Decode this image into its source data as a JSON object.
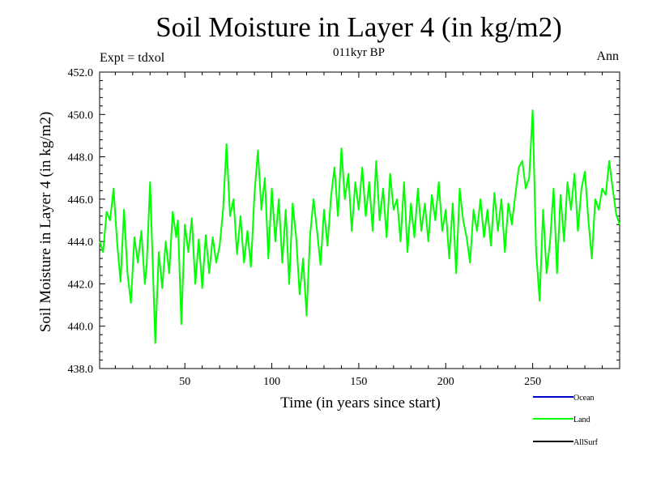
{
  "header": {
    "title": "Soil Moisture in Layer 4 (in kg/m2)",
    "subtitle": "011kyr BP",
    "left_note": "Expt = tdxol",
    "right_note": "Ann"
  },
  "chart_data": {
    "type": "line",
    "title": "Soil Moisture in Layer 4 (in kg/m2)",
    "subtitle": "011kyr BP",
    "xlabel": "Time (in years since start)",
    "ylabel": "Soil Moisture in Layer 4 (in kg/m2)",
    "xlim": [
      1,
      300
    ],
    "ylim": [
      438,
      452
    ],
    "xticks": [
      50,
      100,
      150,
      200,
      250
    ],
    "yticks": [
      "438.0",
      "440.0",
      "442.0",
      "444.0",
      "446.0",
      "448.0",
      "450.0",
      "452.0"
    ],
    "legend_position": "bottom-right",
    "series": [
      {
        "name": "Ocean",
        "color": "#0000cc",
        "values": []
      },
      {
        "name": "Land",
        "color": "#00ff00",
        "x": [
          1,
          3,
          5,
          7,
          9,
          11,
          13,
          15,
          17,
          19,
          21,
          23,
          25,
          27,
          28,
          30,
          33,
          35,
          37,
          39,
          41,
          43,
          45,
          46,
          48,
          50,
          52,
          54,
          56,
          58,
          60,
          62,
          64,
          66,
          68,
          70,
          72,
          74,
          76,
          78,
          80,
          82,
          84,
          86,
          88,
          90,
          92,
          94,
          96,
          98,
          100,
          102,
          104,
          106,
          108,
          110,
          112,
          114,
          116,
          118,
          120,
          122,
          124,
          126,
          128,
          130,
          132,
          134,
          136,
          138,
          140,
          142,
          144,
          146,
          148,
          150,
          152,
          154,
          156,
          158,
          160,
          162,
          164,
          166,
          168,
          170,
          172,
          174,
          176,
          178,
          180,
          182,
          184,
          186,
          188,
          190,
          192,
          194,
          196,
          198,
          200,
          202,
          204,
          206,
          208,
          210,
          212,
          214,
          216,
          218,
          220,
          222,
          224,
          226,
          228,
          230,
          232,
          234,
          236,
          238,
          240,
          242,
          244,
          246,
          248,
          250,
          252,
          254,
          256,
          258,
          260,
          262,
          264,
          266,
          268,
          270,
          272,
          274,
          276,
          278,
          280,
          282,
          284,
          286,
          288,
          290,
          292,
          294,
          296,
          298,
          300
        ],
        "values": [
          444.0,
          443.5,
          445.4,
          445.0,
          446.5,
          444.0,
          442.1,
          445.5,
          442.5,
          441.1,
          444.2,
          443.0,
          444.5,
          442.0,
          442.8,
          446.8,
          439.2,
          443.5,
          441.8,
          444.0,
          442.5,
          445.4,
          444.2,
          445.0,
          440.1,
          444.8,
          443.5,
          445.1,
          442.0,
          444.1,
          441.8,
          444.3,
          442.5,
          444.2,
          443.0,
          443.8,
          445.5,
          448.6,
          445.2,
          446.0,
          443.4,
          445.2,
          443.0,
          444.5,
          442.8,
          446.2,
          448.3,
          445.5,
          447.0,
          443.2,
          446.5,
          444.0,
          446.0,
          443.0,
          445.5,
          442.0,
          445.8,
          444.2,
          441.5,
          443.2,
          440.5,
          444.3,
          446.0,
          444.5,
          442.9,
          445.5,
          443.8,
          446.1,
          447.5,
          445.2,
          448.4,
          446.0,
          447.2,
          444.5,
          446.8,
          445.5,
          447.5,
          445.2,
          446.8,
          444.5,
          447.8,
          445.0,
          446.5,
          444.2,
          447.2,
          445.5,
          446.0,
          444.0,
          446.8,
          443.5,
          445.8,
          444.2,
          446.5,
          444.5,
          445.8,
          444.0,
          446.2,
          445.0,
          446.8,
          444.5,
          445.5,
          443.2,
          445.8,
          442.5,
          446.5,
          445.0,
          444.2,
          443.0,
          445.5,
          444.5,
          446.0,
          444.2,
          445.5,
          443.8,
          446.3,
          444.5,
          446.0,
          443.5,
          445.8,
          444.8,
          446.2,
          447.5,
          447.8,
          446.5,
          447.0,
          450.2,
          443.5,
          441.2,
          445.5,
          442.5,
          444.0,
          446.5,
          442.5,
          446.2,
          444.0,
          446.8,
          445.5,
          447.2,
          444.5,
          446.5,
          447.3,
          445.0,
          443.2,
          446.0,
          445.5,
          446.5,
          446.2,
          447.8,
          446.5,
          445.3,
          444.8
        ]
      },
      {
        "name": "AllSurf",
        "color": "#000000",
        "values": []
      }
    ]
  }
}
